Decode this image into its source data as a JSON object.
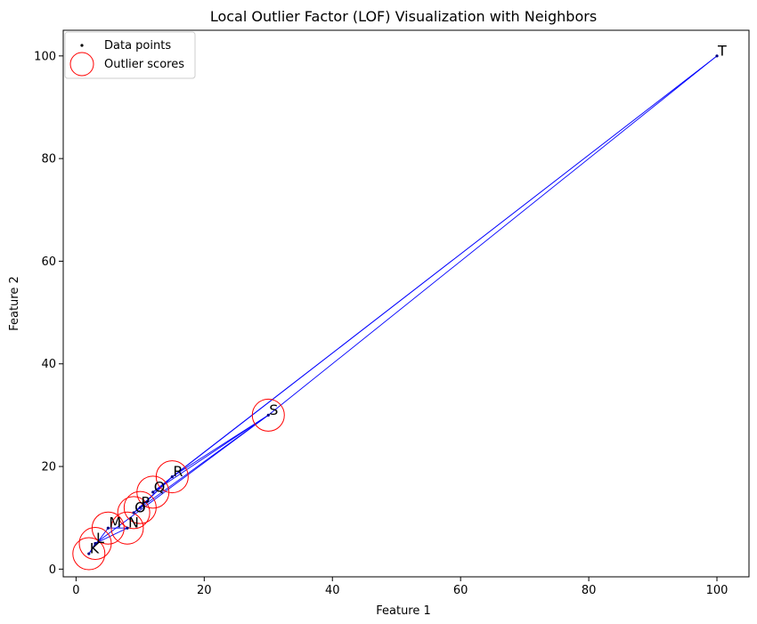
{
  "chart_data": {
    "type": "scatter",
    "title": "Local Outlier Factor (LOF) Visualization with Neighbors",
    "xlabel": "Feature 1",
    "ylabel": "Feature 2",
    "xlim": [
      -2,
      105
    ],
    "ylim": [
      -1.5,
      105
    ],
    "xticks": [
      0,
      20,
      40,
      60,
      80,
      100
    ],
    "yticks": [
      0,
      20,
      40,
      60,
      80,
      100
    ],
    "grid": false,
    "legend_position": "top-left",
    "legend": [
      {
        "label": "Data points",
        "marker": "dot",
        "color": "#000000"
      },
      {
        "label": "Outlier scores",
        "marker": "circle",
        "color": "#ff0000"
      }
    ],
    "point_color": "#000080",
    "outlier_circle_color": "#ff0000",
    "neighbor_line_color": "#0000ff",
    "points": [
      {
        "label": "K",
        "x": 2,
        "y": 3
      },
      {
        "label": "L",
        "x": 3,
        "y": 5
      },
      {
        "label": "M",
        "x": 5,
        "y": 8
      },
      {
        "label": "N",
        "x": 8,
        "y": 8
      },
      {
        "label": "O",
        "x": 9,
        "y": 11
      },
      {
        "label": "P",
        "x": 10,
        "y": 12
      },
      {
        "label": "Q",
        "x": 12,
        "y": 15
      },
      {
        "label": "R",
        "x": 15,
        "y": 18
      },
      {
        "label": "S",
        "x": 30,
        "y": 30
      },
      {
        "label": "T",
        "x": 100,
        "y": 100
      }
    ],
    "outlier_scores": [
      {
        "label": "K",
        "score": 1.0
      },
      {
        "label": "L",
        "score": 1.0
      },
      {
        "label": "M",
        "score": 1.0
      },
      {
        "label": "N",
        "score": 1.0
      },
      {
        "label": "O",
        "score": 1.0
      },
      {
        "label": "P",
        "score": 1.0
      },
      {
        "label": "Q",
        "score": 1.0
      },
      {
        "label": "R",
        "score": 1.0
      },
      {
        "label": "S",
        "score": 1.0
      }
    ],
    "neighbor_links": [
      [
        "K",
        "L"
      ],
      [
        "K",
        "M"
      ],
      [
        "L",
        "N"
      ],
      [
        "M",
        "N"
      ],
      [
        "O",
        "P"
      ],
      [
        "O",
        "R"
      ],
      [
        "P",
        "R"
      ],
      [
        "Q",
        "R"
      ],
      [
        "L",
        "S"
      ],
      [
        "O",
        "S"
      ],
      [
        "R",
        "S"
      ],
      [
        "Q",
        "S"
      ],
      [
        "T",
        "S"
      ],
      [
        "T",
        "R"
      ],
      [
        "T",
        "Q"
      ]
    ]
  }
}
